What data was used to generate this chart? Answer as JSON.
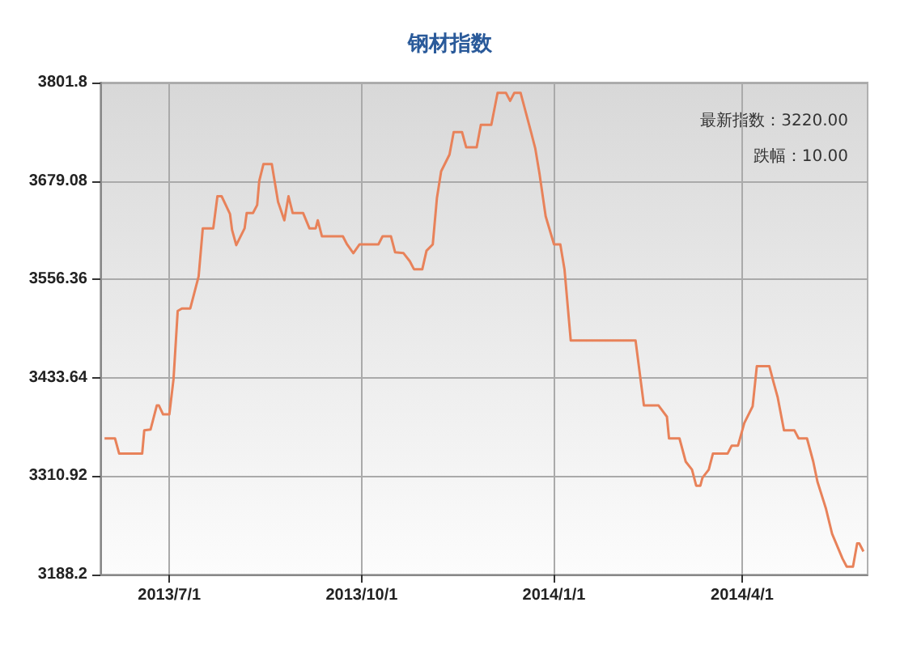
{
  "chart_data": {
    "type": "line",
    "title": "钢材指数",
    "annotations": [
      "最新指数：3220.00",
      "跌幅：10.00"
    ],
    "x": [
      "2013-05-31",
      "2013-06-05",
      "2013-06-07",
      "2013-06-18",
      "2013-06-19",
      "2013-06-22",
      "2013-06-25",
      "2013-06-26",
      "2013-06-28",
      "2013-07-01",
      "2013-07-03",
      "2013-07-05",
      "2013-07-07",
      "2013-07-11",
      "2013-07-13",
      "2013-07-15",
      "2013-07-17",
      "2013-07-22",
      "2013-07-24",
      "2013-07-26",
      "2013-07-30",
      "2013-07-31",
      "2013-08-02",
      "2013-08-06",
      "2013-08-07",
      "2013-08-10",
      "2013-08-12",
      "2013-08-13",
      "2013-08-15",
      "2013-08-19",
      "2013-08-22",
      "2013-08-25",
      "2013-08-27",
      "2013-08-29",
      "2013-09-03",
      "2013-09-06",
      "2013-09-09",
      "2013-09-10",
      "2013-09-12",
      "2013-09-22",
      "2013-09-24",
      "2013-09-27",
      "2013-09-30",
      "2013-10-09",
      "2013-10-11",
      "2013-10-15",
      "2013-10-17",
      "2013-10-21",
      "2013-10-24",
      "2013-10-26",
      "2013-10-30",
      "2013-11-01",
      "2013-11-04",
      "2013-11-06",
      "2013-11-08",
      "2013-11-12",
      "2013-11-14",
      "2013-11-18",
      "2013-11-20",
      "2013-11-25",
      "2013-11-27",
      "2013-12-02",
      "2013-12-05",
      "2013-12-09",
      "2013-12-11",
      "2013-12-13",
      "2013-12-16",
      "2013-12-21",
      "2013-12-23",
      "2013-12-25",
      "2013-12-28",
      "2014-01-01",
      "2014-01-04",
      "2014-01-06",
      "2014-01-09",
      "2014-02-09",
      "2014-02-13",
      "2014-02-20",
      "2014-02-24",
      "2014-02-25",
      "2014-03-02",
      "2014-03-05",
      "2014-03-08",
      "2014-03-10",
      "2014-03-12",
      "2014-03-13",
      "2014-03-16",
      "2014-03-18",
      "2014-03-25",
      "2014-03-27",
      "2014-03-30",
      "2014-04-02",
      "2014-04-06",
      "2014-04-08",
      "2014-04-14",
      "2014-04-16",
      "2014-04-18",
      "2014-04-21",
      "2014-04-26",
      "2014-04-28",
      "2014-05-02",
      "2014-05-05",
      "2014-05-07",
      "2014-05-11",
      "2014-05-14",
      "2014-05-19",
      "2014-05-21",
      "2014-05-24",
      "2014-05-26",
      "2014-05-27",
      "2014-05-29"
    ],
    "series": [
      {
        "color": "#e8825a",
        "values": [
          3358,
          3358,
          3339,
          3339,
          3368,
          3369,
          3399,
          3399,
          3388,
          3388,
          3432,
          3517,
          3520,
          3520,
          3540,
          3560,
          3620,
          3620,
          3660,
          3660,
          3638,
          3618,
          3599,
          3620,
          3639,
          3639,
          3649,
          3679,
          3700,
          3700,
          3653,
          3630,
          3660,
          3639,
          3639,
          3620,
          3620,
          3630,
          3610,
          3610,
          3600,
          3589,
          3600,
          3600,
          3610,
          3610,
          3590,
          3589,
          3579,
          3569,
          3569,
          3592,
          3600,
          3658,
          3691,
          3712,
          3740,
          3740,
          3721,
          3721,
          3749,
          3749,
          3789,
          3789,
          3779,
          3789,
          3789,
          3740,
          3720,
          3689,
          3635,
          3600,
          3600,
          3569,
          3480,
          3480,
          3399,
          3399,
          3385,
          3358,
          3358,
          3329,
          3319,
          3299,
          3299,
          3309,
          3319,
          3339,
          3339,
          3349,
          3349,
          3377,
          3398,
          3448,
          3448,
          3428,
          3409,
          3368,
          3368,
          3358,
          3358,
          3329,
          3304,
          3271,
          3239,
          3208,
          3198,
          3198,
          3227,
          3227,
          3217
        ]
      }
    ],
    "xlim": [
      "2013-05-29",
      "2014-05-31"
    ],
    "xticks": [
      {
        "value": "2013-07-01",
        "label": "2013/7/1"
      },
      {
        "value": "2013-10-01",
        "label": "2013/10/1"
      },
      {
        "value": "2014-01-01",
        "label": "2014/1/1"
      },
      {
        "value": "2014-04-01",
        "label": "2014/4/1"
      }
    ],
    "ylim": [
      3188.2,
      3801.8
    ],
    "yticks": [
      3188.2,
      3310.92,
      3433.64,
      3556.36,
      3679.08,
      3801.8
    ],
    "grid": true,
    "marker": "none",
    "line_style": "solid"
  }
}
